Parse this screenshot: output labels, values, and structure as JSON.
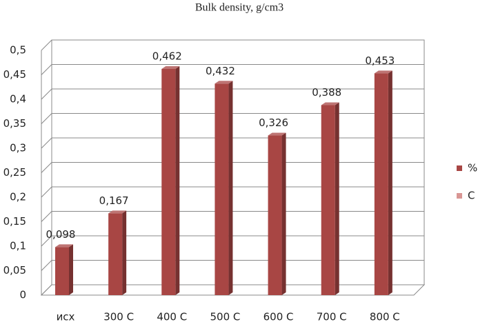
{
  "chart_data": {
    "type": "bar3d",
    "title": "Bulk density, g/cm3",
    "categories": [
      "исх",
      "300 C",
      "400 C",
      "500 C",
      "600 C",
      "700 C",
      "800 C"
    ],
    "series": [
      {
        "name": "%",
        "color": "#a84644",
        "values": [
          0.098,
          0.167,
          0.462,
          0.432,
          0.326,
          0.388,
          0.453
        ],
        "value_labels": [
          "0,098",
          "0,167",
          "0,462",
          "0,432",
          "0,326",
          "0,388",
          "0,453"
        ]
      },
      {
        "name": "C",
        "color": "#d99694",
        "values": [
          null,
          null,
          null,
          null,
          null,
          null,
          null
        ]
      }
    ],
    "ylim": [
      0,
      0.5
    ],
    "yticks": [
      0,
      {
        "value": 0.05,
        "label": "0,05"
      },
      {
        "value": 0.1,
        "label": "0,1"
      },
      {
        "value": 0.15,
        "label": "0,15"
      },
      {
        "value": 0.2,
        "label": "0,2"
      },
      {
        "value": 0.25,
        "label": "0,25"
      },
      {
        "value": 0.3,
        "label": "0,3"
      },
      {
        "value": 0.35,
        "label": "0,35"
      },
      {
        "value": 0.4,
        "label": "0,4"
      },
      {
        "value": 0.45,
        "label": "0,45"
      },
      {
        "value": 0.5,
        "label": "0,5"
      }
    ],
    "grid": true,
    "legend": "right"
  }
}
